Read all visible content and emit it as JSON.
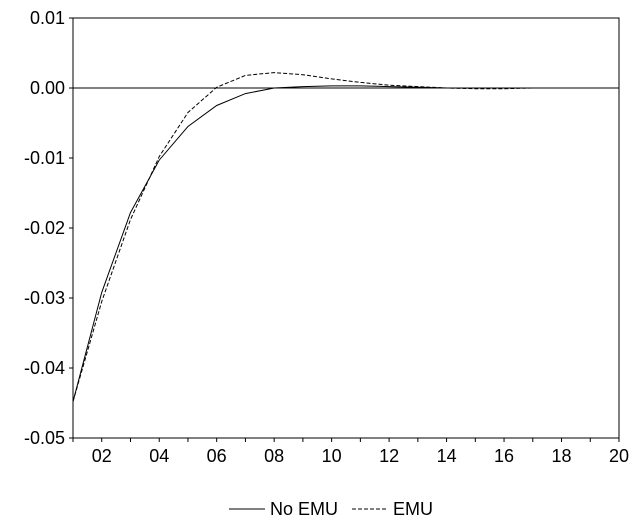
{
  "chart_data": {
    "type": "line",
    "title": "",
    "xlabel": "",
    "ylabel": "",
    "x": [
      1,
      2,
      3,
      4,
      5,
      6,
      7,
      8,
      9,
      10,
      11,
      12,
      13,
      14,
      15,
      16,
      17,
      18,
      19,
      20
    ],
    "x_tick_values": [
      2,
      4,
      6,
      8,
      10,
      12,
      14,
      16,
      18,
      20
    ],
    "x_tick_labels": [
      "02",
      "04",
      "06",
      "08",
      "10",
      "12",
      "14",
      "16",
      "18",
      "20"
    ],
    "xlim": [
      1,
      20
    ],
    "y_ticks": [
      0.01,
      0.0,
      -0.01,
      -0.02,
      -0.03,
      -0.04,
      -0.05
    ],
    "y_tick_labels": [
      "0.01",
      "0.00",
      "-0.01",
      "-0.02",
      "-0.03",
      "-0.04",
      "-0.05"
    ],
    "ylim": [
      -0.05,
      0.01
    ],
    "zero_line": true,
    "grid": false,
    "legend_position": "bottom-center",
    "series": [
      {
        "name": "No EMU",
        "style": "solid",
        "color": "#000000",
        "values": [
          -0.0448,
          -0.0292,
          -0.0178,
          -0.0103,
          -0.0055,
          -0.0025,
          -0.0008,
          0.0,
          0.0002,
          0.0003,
          0.0003,
          0.0002,
          0.0001,
          0.0,
          0.0,
          0.0,
          0.0,
          0.0,
          0.0,
          0.0
        ]
      },
      {
        "name": "EMU",
        "style": "dashed",
        "color": "#000000",
        "values": [
          -0.0448,
          -0.0305,
          -0.0188,
          -0.0098,
          -0.0035,
          0.0001,
          0.0018,
          0.0022,
          0.0019,
          0.0013,
          0.0008,
          0.0004,
          0.0002,
          0.0,
          -0.0001,
          -0.0001,
          0.0,
          0.0,
          0.0,
          0.0
        ]
      }
    ]
  }
}
